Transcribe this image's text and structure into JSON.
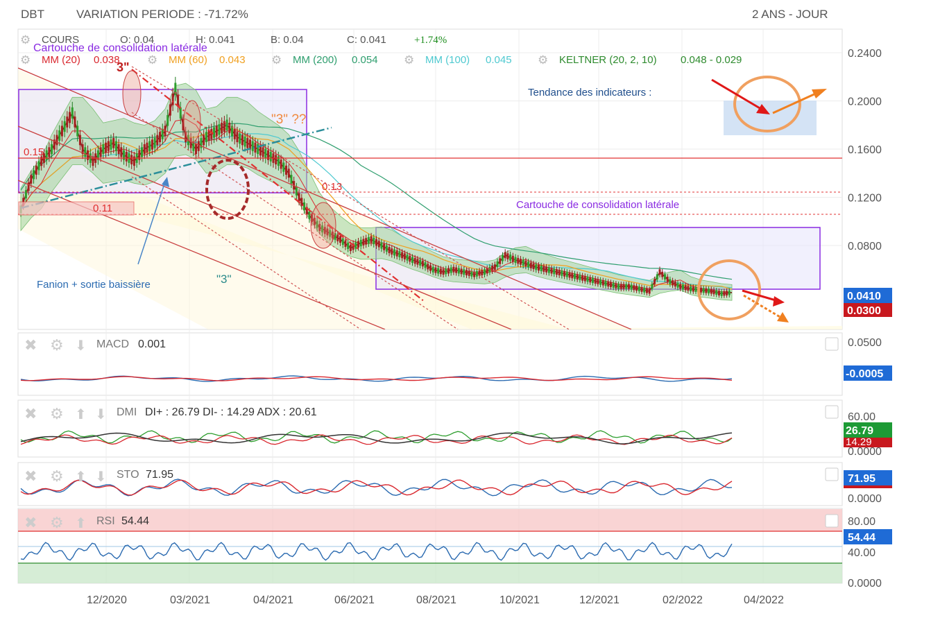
{
  "header": {
    "symbol": "DBT",
    "variation": "VARIATION PERIODE : -71.72%",
    "period": "2 ANS - JOUR"
  },
  "ohlc": {
    "cours_label": "COURS",
    "o": "O: 0.04",
    "h": "H: 0.041",
    "b": "B: 0.04",
    "c": "C: 0.041",
    "change": "+1.74%"
  },
  "indicators": {
    "mm20": "MM (20)",
    "mm20_val": "0.038",
    "mm60": "MM (60)",
    "mm60_val": "0.043",
    "mm200": "MM (200)",
    "mm200_val": "0.054",
    "mm100": "MM (100)",
    "mm100_val": "0.045",
    "keltner": "KELTNER (20, 2, 10)",
    "keltner_val": "0.048 - 0.029"
  },
  "annotations": {
    "cartouche_top": "Cartouche de consolidation latérale",
    "cartouche_bottom": "Cartouche de consolidation latérale",
    "tendance": "Tendance des indicateurs :",
    "three_q": "\"3\" ??",
    "three_top": "3\"",
    "three_mid": "\"3\"",
    "fanion": "Fanion + sortie baissière",
    "level_015": "0.15",
    "level_013": "0.13",
    "level_011": "0.11"
  },
  "badges": {
    "price": "0.0410",
    "low": "0.0300",
    "macd": "-0.0005",
    "dmi": "26.79",
    "dmi_under": "14.29",
    "sto": "71.95",
    "rsi": "54.44"
  },
  "panels": {
    "macd_label": "MACD",
    "macd_val": "0.001",
    "dmi_label": "DMI",
    "dmi_val": "DI+ : 26.79 DI- : 14.29 ADX : 20.61",
    "sto_label": "STO",
    "sto_val": "71.95",
    "rsi_label": "RSI",
    "rsi_val": "54.44"
  },
  "colors": {
    "mm20": "#d9272e",
    "mm60": "#f0a020",
    "mm200": "#2e9e6e",
    "mm100": "#4ec9d0",
    "keltner": "#2e8b2e",
    "purple": "#8a2be2",
    "blue_badge": "#1f6bd6",
    "red_badge": "#c8181e",
    "green_badge": "#1d9a35"
  },
  "chart_data": {
    "type": "line",
    "price_axis": {
      "ticks": [
        "0.2400",
        "0.2000",
        "0.1600",
        "0.1200",
        "0.0800"
      ],
      "values": [
        0.24,
        0.2,
        0.16,
        0.12,
        0.08
      ],
      "scale": "linear"
    },
    "macd_axis": {
      "ticks": [
        "0.0500"
      ]
    },
    "dmi_axis": {
      "ticks": [
        "60.00",
        "0.0000"
      ]
    },
    "sto_axis": {
      "ticks": [
        "0.0000"
      ]
    },
    "rsi_axis": {
      "ticks": [
        "80.00",
        "40.00",
        "0.0000"
      ]
    },
    "x_ticks": [
      "12/2020",
      "03/2021",
      "04/2021",
      "06/2021",
      "08/2021",
      "10/2021",
      "12/2021",
      "02/2022",
      "04/2022"
    ],
    "horizontal_levels": [
      0.155,
      0.125,
      0.107
    ],
    "price_series": {
      "name": "COURS",
      "values": [
        0.11,
        0.135,
        0.15,
        0.16,
        0.175,
        0.19,
        0.16,
        0.15,
        0.16,
        0.165,
        0.155,
        0.15,
        0.16,
        0.165,
        0.175,
        0.21,
        0.17,
        0.16,
        0.17,
        0.175,
        0.18,
        0.17,
        0.165,
        0.16,
        0.155,
        0.15,
        0.14,
        0.12,
        0.105,
        0.095,
        0.09,
        0.085,
        0.078,
        0.082,
        0.085,
        0.08,
        0.075,
        0.072,
        0.068,
        0.065,
        0.06,
        0.058,
        0.06,
        0.058,
        0.056,
        0.058,
        0.062,
        0.072,
        0.068,
        0.065,
        0.062,
        0.06,
        0.058,
        0.056,
        0.054,
        0.052,
        0.05,
        0.048,
        0.046,
        0.046,
        0.044,
        0.042,
        0.058,
        0.05,
        0.046,
        0.044,
        0.043,
        0.042,
        0.04,
        0.041
      ]
    }
  }
}
